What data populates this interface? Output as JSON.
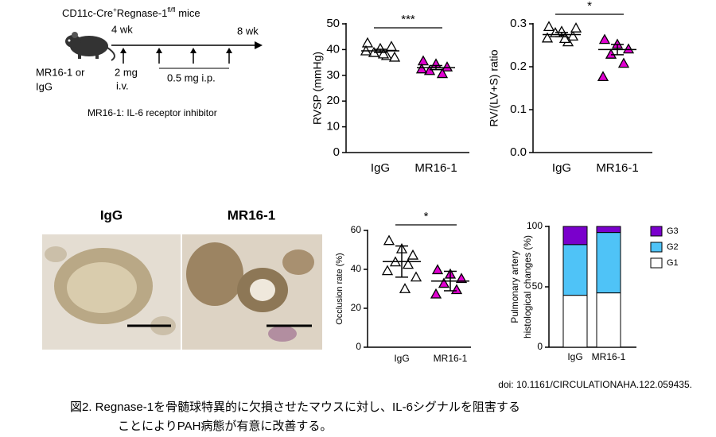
{
  "protocol": {
    "title": [
      "CD11c-Cre",
      "+",
      "Regnase-1",
      "fl/fl",
      " mice"
    ],
    "start": "4 wk",
    "end": "8 wk",
    "treatment": [
      "MR16-1 or",
      "IgG"
    ],
    "first_dose": [
      "2 mg",
      "i.v."
    ],
    "later_doses": "0.5 mg  i.p.",
    "note": "MR16-1: IL-6 receptor inhibitor"
  },
  "histology": {
    "labels": [
      "IgG",
      "MR16-1"
    ]
  },
  "chart_data": [
    {
      "type": "strip",
      "ylabel": "RVSP (mmHg)",
      "categories": [
        "IgG",
        "MR16-1"
      ],
      "groups": [
        {
          "color": "#ffffff",
          "values": [
            42,
            40,
            41,
            39,
            38,
            40,
            37,
            39
          ],
          "mean": 39.5,
          "error": 0.6
        },
        {
          "color": "#e000d0",
          "values": [
            35,
            34,
            33,
            32,
            31,
            33
          ],
          "mean": 33,
          "error": 0.8
        }
      ],
      "significance": "***",
      "ylim": [
        0,
        50
      ],
      "yticks": [
        0,
        10,
        20,
        30,
        40,
        50
      ]
    },
    {
      "type": "strip",
      "ylabel": "RV/(LV+S) ratio",
      "categories": [
        "IgG",
        "MR16-1"
      ],
      "groups": [
        {
          "color": "#ffffff",
          "values": [
            0.29,
            0.28,
            0.27,
            0.28,
            0.26,
            0.27,
            0.29,
            0.27
          ],
          "mean": 0.275,
          "error": 0.005
        },
        {
          "color": "#e000d0",
          "values": [
            0.26,
            0.25,
            0.24,
            0.23,
            0.21,
            0.18
          ],
          "mean": 0.24,
          "error": 0.012
        }
      ],
      "significance": "*",
      "ylim": [
        0,
        0.3
      ],
      "yticks": [
        {
          "value": 0,
          "label": "0.0"
        },
        0.1,
        0.2,
        0.3
      ]
    },
    {
      "type": "strip",
      "ylabel": "Occlusion rate (%)",
      "categories": [
        "IgG",
        "MR16-1"
      ],
      "groups": [
        {
          "color": "#ffffff",
          "values": [
            54,
            50,
            47,
            44,
            43,
            40,
            36,
            31
          ],
          "mean": 44,
          "error": 8
        },
        {
          "color": "#e000d0",
          "values": [
            39,
            37,
            35,
            33,
            30,
            28
          ],
          "mean": 34,
          "error": 5
        }
      ],
      "significance": "*",
      "ylim": [
        0,
        60
      ],
      "yticks": [
        0,
        20,
        40,
        60
      ]
    },
    {
      "type": "bar",
      "stacked": true,
      "ylabel": [
        "Pulmonary artery",
        "histological changes (%)"
      ],
      "categories": [
        "IgG",
        "MR16-1"
      ],
      "series": [
        {
          "name": "G1",
          "color": "#ffffff",
          "values": [
            43,
            45
          ]
        },
        {
          "name": "G2",
          "color": "#4fc3f7",
          "values": [
            42,
            50
          ]
        },
        {
          "name": "G3",
          "color": "#7a00cc",
          "values": [
            15,
            5
          ]
        }
      ],
      "legend": "right",
      "ylim": [
        0,
        100
      ],
      "yticks": [
        0,
        50,
        100
      ]
    }
  ],
  "doi": "doi: 10.1161/CIRCULATIONAHA.122.059435.",
  "caption": [
    "図2. Regnase-1を骨髄球特異的に欠損させたマウスに対し、IL-6シグナルを阻害する",
    "ことによりPAH病態が有意に改善する。"
  ]
}
